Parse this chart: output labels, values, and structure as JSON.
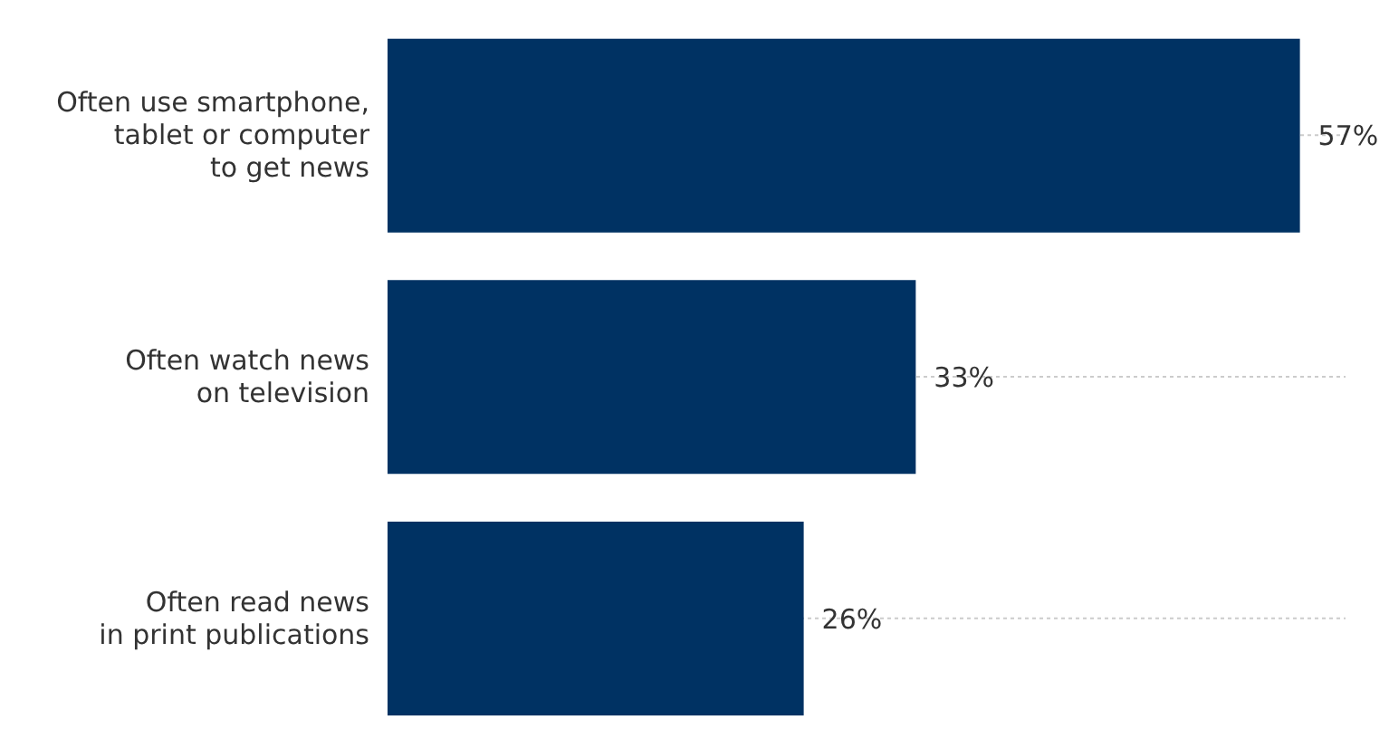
{
  "chart_data": {
    "type": "bar",
    "orientation": "horizontal",
    "categories": [
      "Often use smartphone,\ntablet or computer\nto get news",
      "Often watch news\non television",
      "Often read news\nin print publications"
    ],
    "values": [
      57,
      33,
      26
    ],
    "value_labels": [
      "57%",
      "33%",
      "26%"
    ],
    "color": "#003263",
    "grid": "y",
    "legend": false
  }
}
